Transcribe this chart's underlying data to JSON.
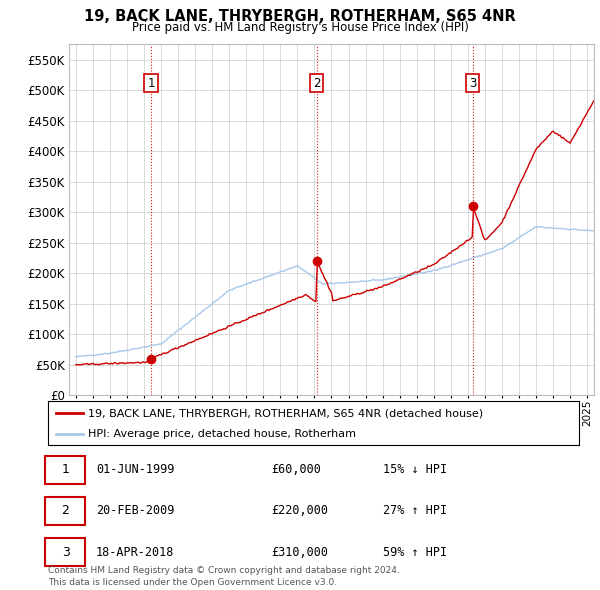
{
  "title": "19, BACK LANE, THRYBERGH, ROTHERHAM, S65 4NR",
  "subtitle": "Price paid vs. HM Land Registry's House Price Index (HPI)",
  "ylim": [
    0,
    575000
  ],
  "yticks": [
    0,
    50000,
    100000,
    150000,
    200000,
    250000,
    300000,
    350000,
    400000,
    450000,
    500000,
    550000
  ],
  "sale_year_nums": [
    1999.42,
    2009.13,
    2018.29
  ],
  "sale_prices": [
    60000,
    220000,
    310000
  ],
  "sale_labels": [
    "1",
    "2",
    "3"
  ],
  "sale_info": [
    {
      "label": "1",
      "date": "01-JUN-1999",
      "price": "£60,000",
      "hpi": "15% ↓ HPI"
    },
    {
      "label": "2",
      "date": "20-FEB-2009",
      "price": "£220,000",
      "hpi": "27% ↑ HPI"
    },
    {
      "label": "3",
      "date": "18-APR-2018",
      "price": "£310,000",
      "hpi": "59% ↑ HPI"
    }
  ],
  "legend_line1": "19, BACK LANE, THRYBERGH, ROTHERHAM, S65 4NR (detached house)",
  "legend_line2": "HPI: Average price, detached house, Rotherham",
  "footnote": "Contains HM Land Registry data © Crown copyright and database right 2024.\nThis data is licensed under the Open Government Licence v3.0.",
  "hpi_color": "#a8c8e8",
  "price_color": "#cc0000",
  "vline_color": "#cc0000",
  "background_color": "#ffffff",
  "grid_color": "#cccccc",
  "xlim_left": 1994.6,
  "xlim_right": 2025.4
}
